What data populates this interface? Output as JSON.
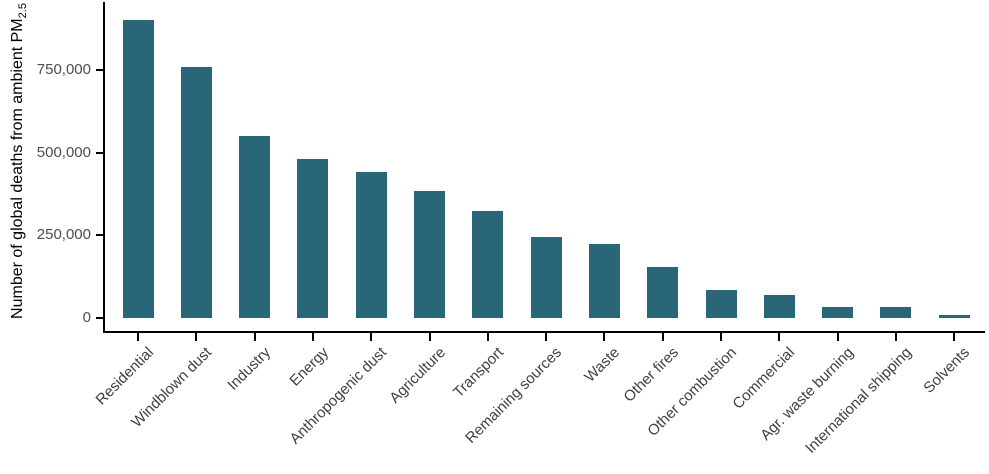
{
  "chart_data": {
    "type": "bar",
    "title": "",
    "ylabel_main": "Number of global deaths from ambient PM",
    "ylabel_sub": "2.5",
    "xlabel": "",
    "categories": [
      "Residential",
      "Windblown dust",
      "Industry",
      "Energy",
      "Anthropogenic dust",
      "Agriculture",
      "Transport",
      "Remaining sources",
      "Waste",
      "Other fires",
      "Other combustion",
      "Commercial",
      "Agr. waste burning",
      "International shipping",
      "Solvents"
    ],
    "values": [
      900000,
      760000,
      550000,
      480000,
      440000,
      385000,
      325000,
      245000,
      225000,
      155000,
      85000,
      70000,
      34000,
      33000,
      9000
    ],
    "y_ticks": [
      {
        "value": 0,
        "label": "0"
      },
      {
        "value": 250000,
        "label": "250,000"
      },
      {
        "value": 500000,
        "label": "500,000"
      },
      {
        "value": 750000,
        "label": "750,000"
      }
    ],
    "ylim": [
      0,
      960000
    ],
    "grid": "off",
    "legend": "none",
    "bar_color": "#296678",
    "axis_color": "#000000",
    "tick_label_color": "#4d4d4d"
  }
}
